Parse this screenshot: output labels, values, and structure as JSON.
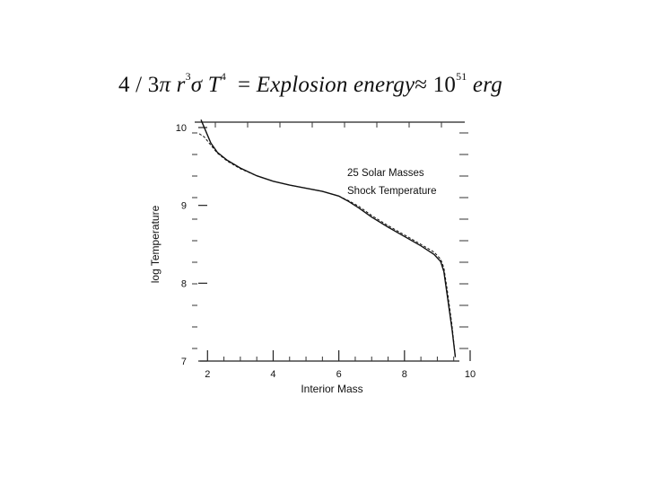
{
  "equation": {
    "coef": "4 / 3",
    "pi": "π",
    "r": "r",
    "r_exp": "3",
    "sigma": "σ",
    "T": "T",
    "T_exp": "4",
    "equals": "=",
    "rhs_text": "Explosion  energy",
    "approx": "≈",
    "ten": "10",
    "ten_exp": "51",
    "unit": "erg"
  },
  "chart_data": {
    "type": "line",
    "xlabel": "Interior Mass",
    "ylabel": "log Temperature",
    "annotations": [
      "25 Solar Masses",
      "Shock Temperature"
    ],
    "xlim": [
      1.5,
      10
    ],
    "ylim": [
      7,
      10
    ],
    "x_ticks": [
      2,
      4,
      6,
      8,
      10
    ],
    "x_tick_labels": [
      "2",
      "4",
      "6",
      "8",
      "10"
    ],
    "y_ticks": [
      7,
      8,
      9,
      10
    ],
    "y_tick_labels": [
      "7",
      "8",
      "9",
      "10"
    ],
    "series": [
      {
        "style": "solid",
        "points": [
          [
            1.8,
            10.1
          ],
          [
            1.95,
            9.95
          ],
          [
            2.1,
            9.8
          ],
          [
            2.3,
            9.68
          ],
          [
            2.6,
            9.58
          ],
          [
            3.0,
            9.48
          ],
          [
            3.5,
            9.38
          ],
          [
            4.0,
            9.31
          ],
          [
            4.5,
            9.26
          ],
          [
            5.0,
            9.22
          ],
          [
            5.5,
            9.18
          ],
          [
            6.0,
            9.12
          ],
          [
            6.3,
            9.05
          ],
          [
            6.6,
            8.97
          ],
          [
            7.0,
            8.85
          ],
          [
            7.5,
            8.72
          ],
          [
            8.0,
            8.6
          ],
          [
            8.5,
            8.48
          ],
          [
            8.9,
            8.37
          ],
          [
            9.1,
            8.28
          ],
          [
            9.2,
            8.15
          ],
          [
            9.3,
            7.85
          ],
          [
            9.45,
            7.4
          ],
          [
            9.55,
            7.05
          ]
        ]
      },
      {
        "style": "dashed",
        "points": [
          [
            1.75,
            9.92
          ],
          [
            1.9,
            9.88
          ],
          [
            2.05,
            9.8
          ],
          [
            2.3,
            9.67
          ],
          [
            2.6,
            9.57
          ],
          [
            3.0,
            9.47
          ],
          [
            3.5,
            9.38
          ],
          [
            4.0,
            9.31
          ],
          [
            4.5,
            9.26
          ],
          [
            5.0,
            9.22
          ],
          [
            5.5,
            9.18
          ],
          [
            6.0,
            9.12
          ],
          [
            6.3,
            9.06
          ],
          [
            6.6,
            8.99
          ],
          [
            7.0,
            8.87
          ],
          [
            7.5,
            8.74
          ],
          [
            8.0,
            8.62
          ],
          [
            8.5,
            8.5
          ],
          [
            8.9,
            8.4
          ],
          [
            9.1,
            8.31
          ],
          [
            9.2,
            8.2
          ],
          [
            9.3,
            7.92
          ],
          [
            9.45,
            7.45
          ],
          [
            9.55,
            7.05
          ]
        ]
      }
    ]
  }
}
